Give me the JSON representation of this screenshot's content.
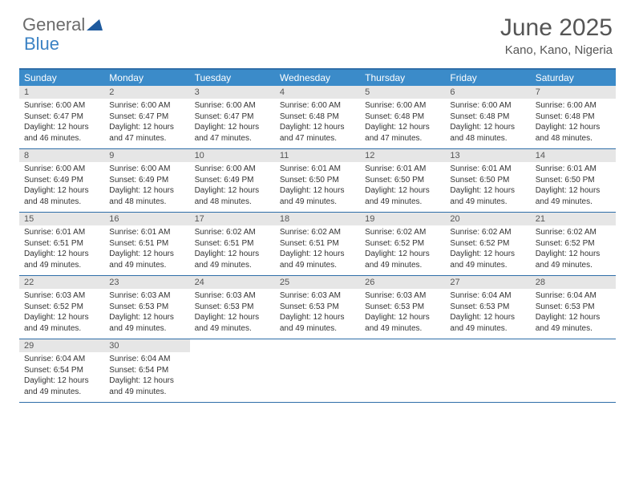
{
  "brand": {
    "part1": "General",
    "part2": "Blue"
  },
  "colors": {
    "header_bg": "#3b8bc9",
    "rule": "#2f6ea8",
    "num_bg": "#e6e6e6",
    "text": "#333333",
    "brand_grey": "#6b6b6b",
    "brand_blue": "#3b82c4"
  },
  "title": "June 2025",
  "location": "Kano, Kano, Nigeria",
  "day_names": [
    "Sunday",
    "Monday",
    "Tuesday",
    "Wednesday",
    "Thursday",
    "Friday",
    "Saturday"
  ],
  "weeks": [
    [
      {
        "n": "1",
        "sr": "Sunrise: 6:00 AM",
        "ss": "Sunset: 6:47 PM",
        "dl": "Daylight: 12 hours and 46 minutes."
      },
      {
        "n": "2",
        "sr": "Sunrise: 6:00 AM",
        "ss": "Sunset: 6:47 PM",
        "dl": "Daylight: 12 hours and 47 minutes."
      },
      {
        "n": "3",
        "sr": "Sunrise: 6:00 AM",
        "ss": "Sunset: 6:47 PM",
        "dl": "Daylight: 12 hours and 47 minutes."
      },
      {
        "n": "4",
        "sr": "Sunrise: 6:00 AM",
        "ss": "Sunset: 6:48 PM",
        "dl": "Daylight: 12 hours and 47 minutes."
      },
      {
        "n": "5",
        "sr": "Sunrise: 6:00 AM",
        "ss": "Sunset: 6:48 PM",
        "dl": "Daylight: 12 hours and 47 minutes."
      },
      {
        "n": "6",
        "sr": "Sunrise: 6:00 AM",
        "ss": "Sunset: 6:48 PM",
        "dl": "Daylight: 12 hours and 48 minutes."
      },
      {
        "n": "7",
        "sr": "Sunrise: 6:00 AM",
        "ss": "Sunset: 6:48 PM",
        "dl": "Daylight: 12 hours and 48 minutes."
      }
    ],
    [
      {
        "n": "8",
        "sr": "Sunrise: 6:00 AM",
        "ss": "Sunset: 6:49 PM",
        "dl": "Daylight: 12 hours and 48 minutes."
      },
      {
        "n": "9",
        "sr": "Sunrise: 6:00 AM",
        "ss": "Sunset: 6:49 PM",
        "dl": "Daylight: 12 hours and 48 minutes."
      },
      {
        "n": "10",
        "sr": "Sunrise: 6:00 AM",
        "ss": "Sunset: 6:49 PM",
        "dl": "Daylight: 12 hours and 48 minutes."
      },
      {
        "n": "11",
        "sr": "Sunrise: 6:01 AM",
        "ss": "Sunset: 6:50 PM",
        "dl": "Daylight: 12 hours and 49 minutes."
      },
      {
        "n": "12",
        "sr": "Sunrise: 6:01 AM",
        "ss": "Sunset: 6:50 PM",
        "dl": "Daylight: 12 hours and 49 minutes."
      },
      {
        "n": "13",
        "sr": "Sunrise: 6:01 AM",
        "ss": "Sunset: 6:50 PM",
        "dl": "Daylight: 12 hours and 49 minutes."
      },
      {
        "n": "14",
        "sr": "Sunrise: 6:01 AM",
        "ss": "Sunset: 6:50 PM",
        "dl": "Daylight: 12 hours and 49 minutes."
      }
    ],
    [
      {
        "n": "15",
        "sr": "Sunrise: 6:01 AM",
        "ss": "Sunset: 6:51 PM",
        "dl": "Daylight: 12 hours and 49 minutes."
      },
      {
        "n": "16",
        "sr": "Sunrise: 6:01 AM",
        "ss": "Sunset: 6:51 PM",
        "dl": "Daylight: 12 hours and 49 minutes."
      },
      {
        "n": "17",
        "sr": "Sunrise: 6:02 AM",
        "ss": "Sunset: 6:51 PM",
        "dl": "Daylight: 12 hours and 49 minutes."
      },
      {
        "n": "18",
        "sr": "Sunrise: 6:02 AM",
        "ss": "Sunset: 6:51 PM",
        "dl": "Daylight: 12 hours and 49 minutes."
      },
      {
        "n": "19",
        "sr": "Sunrise: 6:02 AM",
        "ss": "Sunset: 6:52 PM",
        "dl": "Daylight: 12 hours and 49 minutes."
      },
      {
        "n": "20",
        "sr": "Sunrise: 6:02 AM",
        "ss": "Sunset: 6:52 PM",
        "dl": "Daylight: 12 hours and 49 minutes."
      },
      {
        "n": "21",
        "sr": "Sunrise: 6:02 AM",
        "ss": "Sunset: 6:52 PM",
        "dl": "Daylight: 12 hours and 49 minutes."
      }
    ],
    [
      {
        "n": "22",
        "sr": "Sunrise: 6:03 AM",
        "ss": "Sunset: 6:52 PM",
        "dl": "Daylight: 12 hours and 49 minutes."
      },
      {
        "n": "23",
        "sr": "Sunrise: 6:03 AM",
        "ss": "Sunset: 6:53 PM",
        "dl": "Daylight: 12 hours and 49 minutes."
      },
      {
        "n": "24",
        "sr": "Sunrise: 6:03 AM",
        "ss": "Sunset: 6:53 PM",
        "dl": "Daylight: 12 hours and 49 minutes."
      },
      {
        "n": "25",
        "sr": "Sunrise: 6:03 AM",
        "ss": "Sunset: 6:53 PM",
        "dl": "Daylight: 12 hours and 49 minutes."
      },
      {
        "n": "26",
        "sr": "Sunrise: 6:03 AM",
        "ss": "Sunset: 6:53 PM",
        "dl": "Daylight: 12 hours and 49 minutes."
      },
      {
        "n": "27",
        "sr": "Sunrise: 6:04 AM",
        "ss": "Sunset: 6:53 PM",
        "dl": "Daylight: 12 hours and 49 minutes."
      },
      {
        "n": "28",
        "sr": "Sunrise: 6:04 AM",
        "ss": "Sunset: 6:53 PM",
        "dl": "Daylight: 12 hours and 49 minutes."
      }
    ],
    [
      {
        "n": "29",
        "sr": "Sunrise: 6:04 AM",
        "ss": "Sunset: 6:54 PM",
        "dl": "Daylight: 12 hours and 49 minutes."
      },
      {
        "n": "30",
        "sr": "Sunrise: 6:04 AM",
        "ss": "Sunset: 6:54 PM",
        "dl": "Daylight: 12 hours and 49 minutes."
      },
      null,
      null,
      null,
      null,
      null
    ]
  ]
}
